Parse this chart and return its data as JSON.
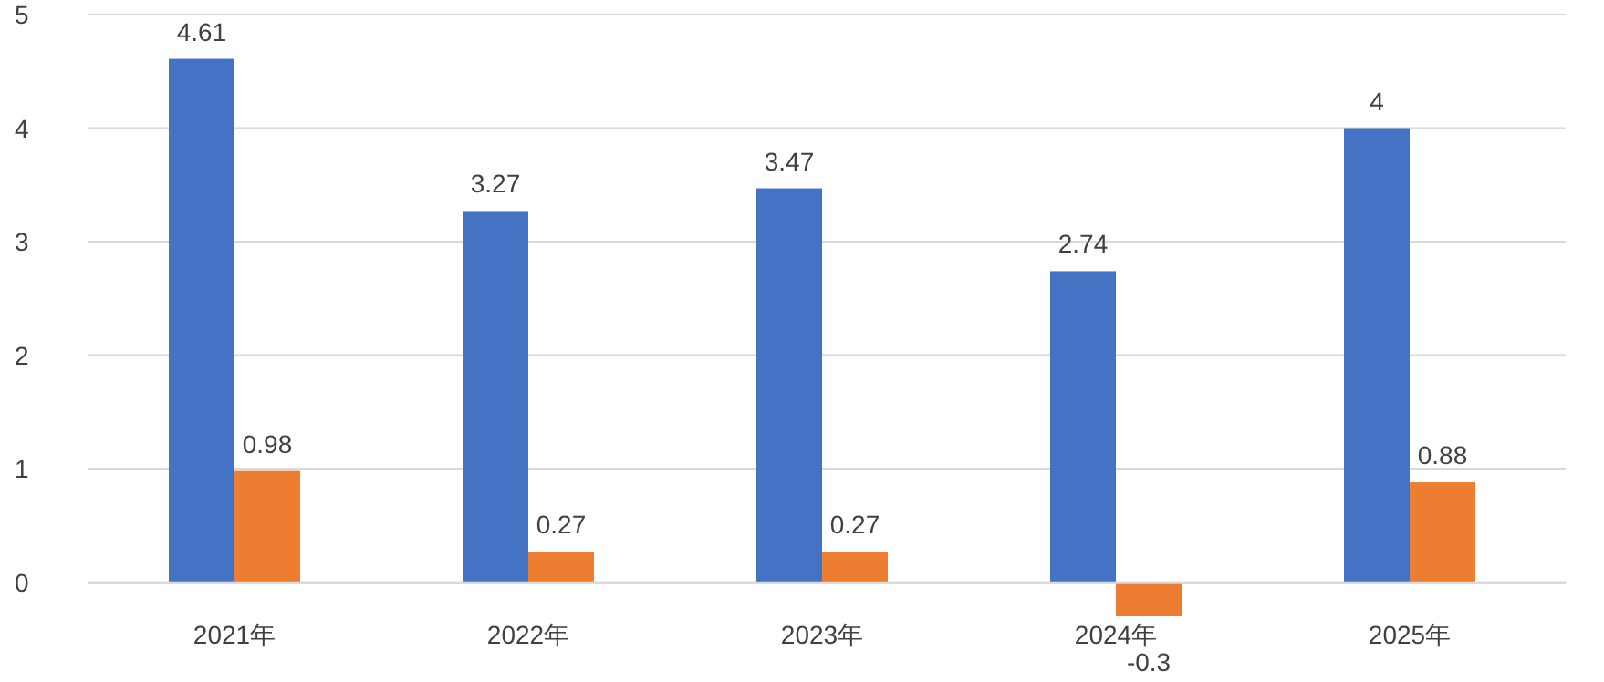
{
  "chart_data": {
    "type": "bar",
    "categories": [
      "2021年",
      "2022年",
      "2023年",
      "2024年",
      "2025年"
    ],
    "series": [
      {
        "color": "#4472c4",
        "values": [
          4.61,
          3.27,
          3.47,
          2.74,
          4
        ]
      },
      {
        "color": "#ed7d31",
        "values": [
          0.98,
          0.27,
          0.27,
          -0.3,
          0.88
        ]
      }
    ],
    "ylim": [
      -0.3,
      5
    ],
    "yticks": [
      0,
      1,
      2,
      3,
      4,
      5
    ],
    "grid": "y",
    "data_labels": true
  }
}
